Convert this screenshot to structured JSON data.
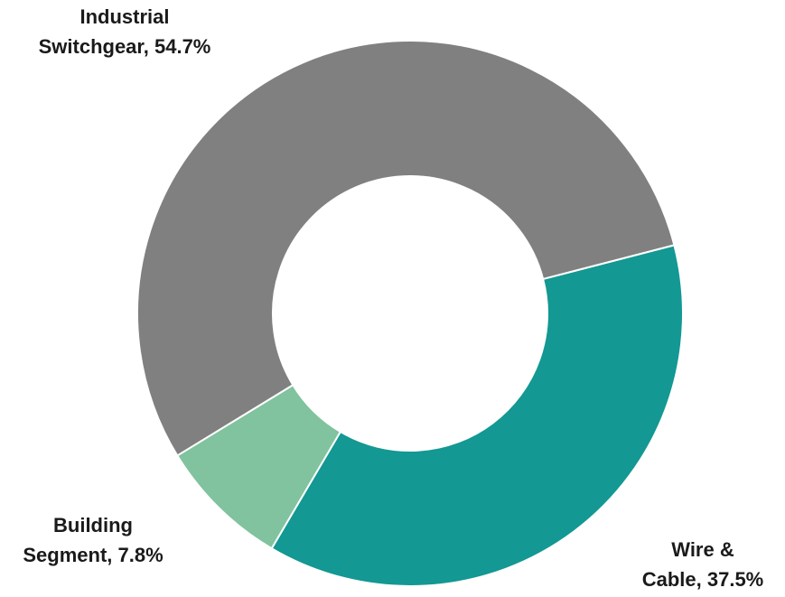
{
  "chart_data": {
    "type": "pie",
    "donut": true,
    "categories": [
      "Industrial Switchgear",
      "Wire & Cable",
      "Building Segment"
    ],
    "values": [
      54.7,
      37.5,
      7.8
    ],
    "unit": "%",
    "colors": [
      "#808080",
      "#139893",
      "#80c39e"
    ],
    "labels": [
      {
        "line1": "Industrial",
        "line2": "Switchgear, 54.7%"
      },
      {
        "line1": "Wire &",
        "line2": "Cable, 37.5%"
      },
      {
        "line1": "Building",
        "line2": "Segment, 7.8%"
      }
    ],
    "legend": "none"
  }
}
